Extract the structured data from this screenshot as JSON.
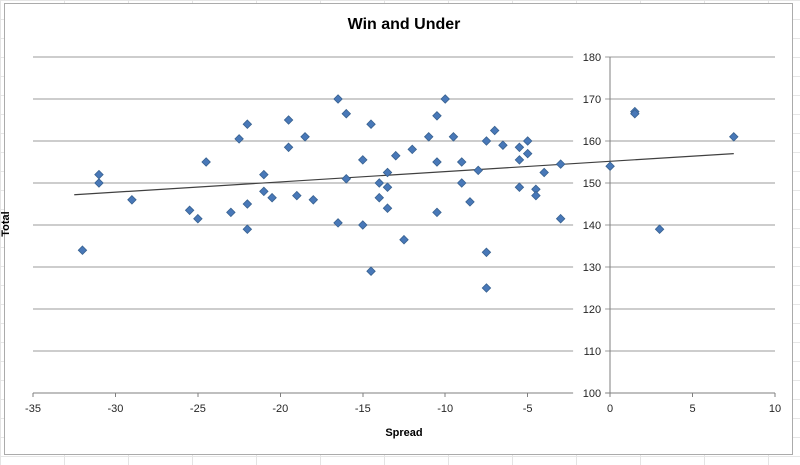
{
  "window": {
    "background_color": "#ffffff",
    "worksheet_gridline_color": "#e4e4e4",
    "chart_border_color": "#ababab"
  },
  "chart_data": {
    "type": "scatter",
    "title": "Win and Under",
    "xlabel": "Spread",
    "ylabel": "Total",
    "xlim": [
      -35,
      10
    ],
    "ylim": [
      100,
      180
    ],
    "x_ticks": [
      -35,
      -30,
      -25,
      -20,
      -15,
      -10,
      -5,
      0,
      5,
      10
    ],
    "y_ticks": [
      100,
      110,
      120,
      130,
      140,
      150,
      160,
      170,
      180
    ],
    "grid": "horizontal-major-on",
    "legend": "none",
    "axis_position": "value-axis-at-x0-labels-left",
    "colors": {
      "marker_fill": "#4878B8",
      "marker_border": "#38618F",
      "gridline": "#9b9b9b",
      "axis_line": "#7f7f7f",
      "trendline": "#404040"
    },
    "marker_shape": "diamond",
    "points": [
      [
        -32,
        134
      ],
      [
        -31,
        152
      ],
      [
        -31,
        150
      ],
      [
        -29,
        146
      ],
      [
        -24.5,
        155
      ],
      [
        -25.5,
        143.5
      ],
      [
        -25,
        141.5
      ],
      [
        -22.5,
        160.5
      ],
      [
        -22,
        164
      ],
      [
        -22,
        145
      ],
      [
        -23,
        143
      ],
      [
        -22,
        139
      ],
      [
        -21,
        152
      ],
      [
        -21,
        148
      ],
      [
        -20.5,
        146.5
      ],
      [
        -19.5,
        165
      ],
      [
        -19.5,
        158.5
      ],
      [
        -19,
        147
      ],
      [
        -18.5,
        161
      ],
      [
        -18,
        146
      ],
      [
        -16.5,
        170
      ],
      [
        -16,
        166.5
      ],
      [
        -16,
        151
      ],
      [
        -16.5,
        140.5
      ],
      [
        -15,
        155.5
      ],
      [
        -15,
        140
      ],
      [
        -14.5,
        164
      ],
      [
        -14.5,
        129
      ],
      [
        -13.5,
        152.5
      ],
      [
        -14,
        150
      ],
      [
        -13.5,
        149
      ],
      [
        -14,
        146.5
      ],
      [
        -13.5,
        144
      ],
      [
        -13,
        156.5
      ],
      [
        -12,
        158
      ],
      [
        -12.5,
        136.5
      ],
      [
        -10,
        170
      ],
      [
        -10.5,
        166
      ],
      [
        -11,
        161
      ],
      [
        -9.5,
        161
      ],
      [
        -10.5,
        155
      ],
      [
        -9,
        155
      ],
      [
        -9,
        150
      ],
      [
        -10.5,
        143
      ],
      [
        -8.5,
        145.5
      ],
      [
        -8,
        153
      ],
      [
        -7.5,
        133.5
      ],
      [
        -7.5,
        125
      ],
      [
        -7,
        162.5
      ],
      [
        -7.5,
        160
      ],
      [
        -6.5,
        159
      ],
      [
        -5,
        160
      ],
      [
        -5.5,
        158.5
      ],
      [
        -5,
        157
      ],
      [
        -5.5,
        155.5
      ],
      [
        -5.5,
        149
      ],
      [
        -4.5,
        148.5
      ],
      [
        -4.5,
        147
      ],
      [
        -4,
        152.5
      ],
      [
        -3,
        154.5
      ],
      [
        -3,
        141.5
      ],
      [
        0,
        154
      ],
      [
        1.5,
        167
      ],
      [
        1.5,
        166.5
      ],
      [
        3,
        139
      ],
      [
        7.5,
        161
      ]
    ],
    "trendline": {
      "x1": -32.5,
      "y1": 147.2,
      "x2": 7.5,
      "y2": 157
    }
  }
}
